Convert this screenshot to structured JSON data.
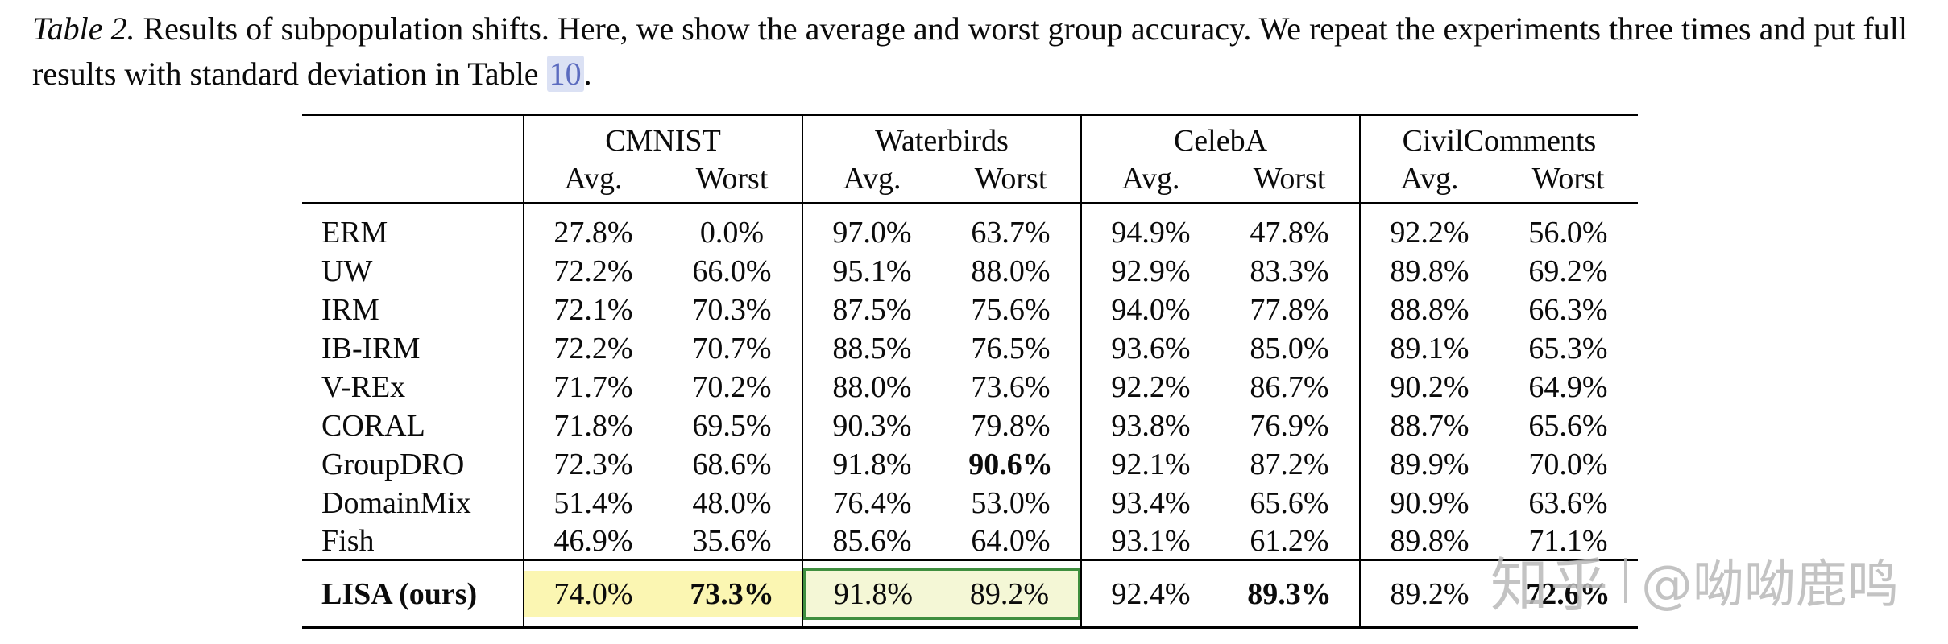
{
  "caption": {
    "label": "Table 2.",
    "body": " Results of subpopulation shifts. Here, we show the average and worst group accuracy. We repeat the experiments three times and put full results with standard deviation in Table ",
    "ref": "10",
    "tail": "."
  },
  "table": {
    "groups": [
      {
        "name": "CMNIST",
        "sub": [
          "Avg.",
          "Worst"
        ]
      },
      {
        "name": "Waterbirds",
        "sub": [
          "Avg.",
          "Worst"
        ]
      },
      {
        "name": "CelebA",
        "sub": [
          "Avg.",
          "Worst"
        ]
      },
      {
        "name": "CivilComments",
        "sub": [
          "Avg.",
          "Worst"
        ]
      }
    ],
    "rows": [
      {
        "method": "ERM",
        "values": [
          "27.8%",
          "0.0%",
          "97.0%",
          "63.7%",
          "94.9%",
          "47.8%",
          "92.2%",
          "56.0%"
        ]
      },
      {
        "method": "UW",
        "values": [
          "72.2%",
          "66.0%",
          "95.1%",
          "88.0%",
          "92.9%",
          "83.3%",
          "89.8%",
          "69.2%"
        ]
      },
      {
        "method": "IRM",
        "values": [
          "72.1%",
          "70.3%",
          "87.5%",
          "75.6%",
          "94.0%",
          "77.8%",
          "88.8%",
          "66.3%"
        ]
      },
      {
        "method": "IB-IRM",
        "values": [
          "72.2%",
          "70.7%",
          "88.5%",
          "76.5%",
          "93.6%",
          "85.0%",
          "89.1%",
          "65.3%"
        ]
      },
      {
        "method": "V-REx",
        "values": [
          "71.7%",
          "70.2%",
          "88.0%",
          "73.6%",
          "92.2%",
          "86.7%",
          "90.2%",
          "64.9%"
        ]
      },
      {
        "method": "CORAL",
        "values": [
          "71.8%",
          "69.5%",
          "90.3%",
          "79.8%",
          "93.8%",
          "76.9%",
          "88.7%",
          "65.6%"
        ]
      },
      {
        "method": "GroupDRO",
        "values": [
          "72.3%",
          "68.6%",
          "91.8%",
          "90.6%",
          "92.1%",
          "87.2%",
          "89.9%",
          "70.0%"
        ],
        "bold": [
          3
        ]
      },
      {
        "method": "DomainMix",
        "values": [
          "51.4%",
          "48.0%",
          "76.4%",
          "53.0%",
          "93.4%",
          "65.6%",
          "90.9%",
          "63.6%"
        ]
      },
      {
        "method": "Fish",
        "values": [
          "46.9%",
          "35.6%",
          "85.6%",
          "64.0%",
          "93.1%",
          "61.2%",
          "89.8%",
          "71.1%"
        ],
        "pre_lisa": true
      },
      {
        "method": "LISA (ours)",
        "method_bold": true,
        "lisa": true,
        "values": [
          "74.0%",
          "73.3%",
          "91.8%",
          "89.2%",
          "92.4%",
          "89.3%",
          "89.2%",
          "72.6%"
        ],
        "bold": [
          1,
          5,
          7
        ],
        "hl": [
          "yellow",
          "yellow",
          "green-left",
          "green-right",
          null,
          null,
          null,
          null
        ]
      }
    ]
  },
  "highlight_colors": {
    "yellow_bg": "#fbf6b2",
    "green_bg": "#f4f7d6",
    "green_border": "#3f8f3f"
  },
  "link_color": "#5b6bbf",
  "watermark": {
    "brand": "知乎",
    "user": "@呦呦鹿鸣"
  }
}
